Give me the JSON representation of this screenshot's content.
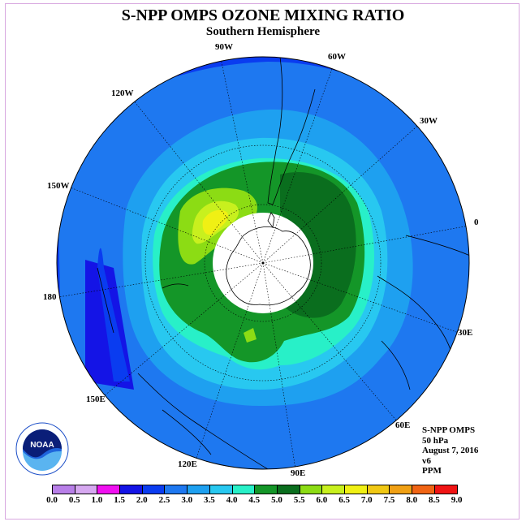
{
  "title": "S-NPP OMPS OZONE MIXING RATIO",
  "subtitle": "Southern Hemisphere",
  "longitude_labels": [
    "90W",
    "60W",
    "30W",
    "0",
    "30E",
    "60E",
    "90E",
    "120E",
    "150E",
    "180",
    "150W",
    "120W"
  ],
  "info": {
    "instrument": "S-NPP OMPS",
    "level": "50 hPa",
    "date": "August 7, 2016",
    "version": "v6",
    "units": "PPM"
  },
  "logo_text": "NOAA",
  "colorbar": {
    "labels": [
      "0.0",
      "0.5",
      "1.0",
      "1.5",
      "2.0",
      "2.5",
      "3.0",
      "3.5",
      "4.0",
      "4.5",
      "5.0",
      "5.5",
      "6.0",
      "6.5",
      "7.0",
      "7.5",
      "8.0",
      "8.5",
      "9.0"
    ],
    "colors": [
      "#b87fe8",
      "#d6a8f0",
      "#f010f0",
      "#1414e6",
      "#0a3cf0",
      "#1e78f0",
      "#1ea0f0",
      "#28c8f0",
      "#28f0c8",
      "#149628",
      "#0a6e1e",
      "#8cdc14",
      "#c8f01e",
      "#f0f014",
      "#f0c814",
      "#f0a014",
      "#f06414",
      "#f01414",
      "#7a5a3c"
    ]
  },
  "colors": {
    "ocean_background": "#1e78f0",
    "polar_night": "#ffffff"
  }
}
